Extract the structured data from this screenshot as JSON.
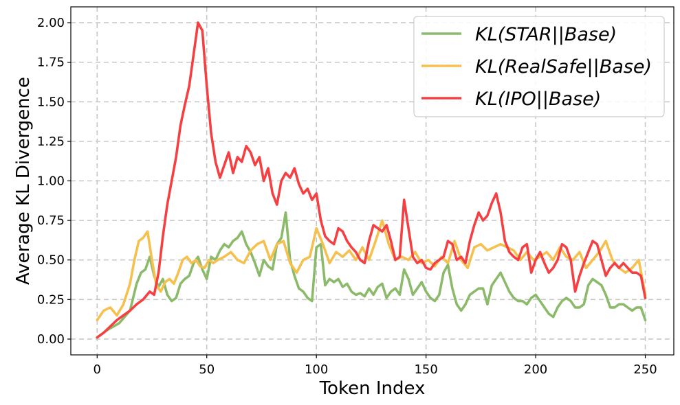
{
  "chart_data": {
    "type": "line",
    "title": "",
    "xlabel": "Token Index",
    "ylabel": "Average KL Divergence",
    "xlim": [
      -12,
      263
    ],
    "ylim": [
      -0.1,
      2.1
    ],
    "xticks": [
      0,
      50,
      100,
      150,
      200,
      250
    ],
    "xtick_labels": [
      "0",
      "50",
      "100",
      "150",
      "200",
      "250"
    ],
    "yticks": [
      0,
      0.25,
      0.5,
      0.75,
      1.0,
      1.25,
      1.5,
      1.75,
      2.0
    ],
    "ytick_labels": [
      "0.00",
      "0.25",
      "0.50",
      "0.75",
      "1.00",
      "1.25",
      "1.50",
      "1.75",
      "2.00"
    ],
    "grid": true,
    "legend_position": "top-right",
    "series": [
      {
        "name": "KL(STAR||Base)",
        "color": "#8bba6a",
        "x": [
          0,
          5,
          10,
          15,
          18,
          20,
          22,
          24,
          26,
          28,
          30,
          32,
          34,
          36,
          38,
          40,
          42,
          44,
          46,
          48,
          50,
          52,
          54,
          56,
          58,
          60,
          62,
          64,
          66,
          68,
          70,
          72,
          74,
          76,
          78,
          80,
          82,
          84,
          86,
          88,
          90,
          92,
          94,
          96,
          98,
          100,
          102,
          104,
          106,
          108,
          110,
          112,
          114,
          116,
          118,
          120,
          122,
          124,
          126,
          128,
          130,
          132,
          134,
          136,
          138,
          140,
          142,
          144,
          146,
          148,
          150,
          152,
          154,
          156,
          158,
          160,
          162,
          164,
          166,
          168,
          170,
          172,
          174,
          176,
          178,
          180,
          182,
          184,
          186,
          188,
          190,
          192,
          194,
          196,
          198,
          200,
          202,
          204,
          206,
          208,
          210,
          212,
          214,
          216,
          218,
          220,
          222,
          224,
          226,
          228,
          230,
          232,
          234,
          236,
          238,
          240,
          242,
          244,
          246,
          248,
          250
        ],
        "values": [
          0.01,
          0.06,
          0.1,
          0.18,
          0.35,
          0.42,
          0.44,
          0.52,
          0.4,
          0.33,
          0.38,
          0.28,
          0.24,
          0.26,
          0.35,
          0.38,
          0.4,
          0.48,
          0.52,
          0.44,
          0.38,
          0.52,
          0.5,
          0.56,
          0.6,
          0.58,
          0.62,
          0.64,
          0.68,
          0.6,
          0.55,
          0.48,
          0.4,
          0.5,
          0.46,
          0.44,
          0.6,
          0.64,
          0.8,
          0.5,
          0.4,
          0.32,
          0.3,
          0.26,
          0.24,
          0.58,
          0.6,
          0.34,
          0.38,
          0.36,
          0.38,
          0.33,
          0.35,
          0.3,
          0.28,
          0.29,
          0.27,
          0.32,
          0.28,
          0.33,
          0.35,
          0.26,
          0.3,
          0.32,
          0.28,
          0.44,
          0.38,
          0.28,
          0.32,
          0.36,
          0.3,
          0.26,
          0.24,
          0.28,
          0.42,
          0.47,
          0.32,
          0.22,
          0.18,
          0.22,
          0.28,
          0.3,
          0.32,
          0.32,
          0.22,
          0.34,
          0.38,
          0.42,
          0.36,
          0.3,
          0.26,
          0.24,
          0.24,
          0.22,
          0.26,
          0.28,
          0.24,
          0.2,
          0.16,
          0.14,
          0.2,
          0.24,
          0.26,
          0.24,
          0.2,
          0.2,
          0.22,
          0.34,
          0.38,
          0.36,
          0.34,
          0.28,
          0.2,
          0.2,
          0.22,
          0.22,
          0.2,
          0.18,
          0.2,
          0.2,
          0.12
        ]
      },
      {
        "name": "KL(RealSafe||Base)",
        "color": "#f5c04e",
        "x": [
          0,
          3,
          6,
          9,
          12,
          15,
          17,
          19,
          21,
          23,
          25,
          27,
          29,
          31,
          33,
          35,
          37,
          39,
          41,
          43,
          45,
          47,
          49,
          51,
          53,
          55,
          58,
          61,
          64,
          67,
          70,
          73,
          76,
          79,
          82,
          85,
          88,
          91,
          94,
          97,
          100,
          103,
          106,
          109,
          112,
          115,
          118,
          121,
          124,
          127,
          130,
          133,
          136,
          139,
          142,
          145,
          148,
          151,
          154,
          157,
          160,
          163,
          166,
          169,
          172,
          175,
          178,
          181,
          184,
          187,
          190,
          193,
          196,
          199,
          202,
          205,
          208,
          211,
          214,
          217,
          220,
          223,
          226,
          229,
          232,
          235,
          238,
          241,
          244,
          247,
          250
        ],
        "values": [
          0.12,
          0.18,
          0.2,
          0.15,
          0.22,
          0.35,
          0.5,
          0.62,
          0.64,
          0.68,
          0.5,
          0.34,
          0.3,
          0.36,
          0.38,
          0.35,
          0.42,
          0.5,
          0.52,
          0.48,
          0.5,
          0.46,
          0.45,
          0.5,
          0.48,
          0.5,
          0.52,
          0.55,
          0.5,
          0.48,
          0.56,
          0.6,
          0.62,
          0.5,
          0.6,
          0.62,
          0.48,
          0.42,
          0.5,
          0.52,
          0.7,
          0.6,
          0.48,
          0.55,
          0.52,
          0.56,
          0.5,
          0.58,
          0.5,
          0.62,
          0.75,
          0.6,
          0.5,
          0.52,
          0.5,
          0.55,
          0.48,
          0.5,
          0.46,
          0.52,
          0.48,
          0.62,
          0.5,
          0.45,
          0.58,
          0.6,
          0.56,
          0.58,
          0.6,
          0.58,
          0.56,
          0.5,
          0.55,
          0.5,
          0.52,
          0.55,
          0.5,
          0.58,
          0.52,
          0.5,
          0.55,
          0.45,
          0.5,
          0.55,
          0.62,
          0.5,
          0.45,
          0.42,
          0.45,
          0.5,
          0.28
        ]
      },
      {
        "name": "KL(IPO||Base)",
        "color": "#f54043",
        "x": [
          0,
          3,
          6,
          9,
          12,
          15,
          18,
          21,
          24,
          26,
          28,
          30,
          32,
          34,
          36,
          38,
          40,
          42,
          44,
          46,
          48,
          50,
          52,
          54,
          56,
          58,
          60,
          62,
          64,
          66,
          68,
          70,
          72,
          74,
          76,
          78,
          80,
          82,
          84,
          86,
          88,
          90,
          92,
          94,
          96,
          98,
          100,
          102,
          104,
          106,
          108,
          110,
          112,
          114,
          116,
          118,
          120,
          122,
          124,
          126,
          128,
          130,
          132,
          134,
          136,
          138,
          140,
          142,
          144,
          146,
          148,
          150,
          152,
          154,
          156,
          158,
          160,
          162,
          164,
          166,
          168,
          170,
          172,
          174,
          176,
          178,
          180,
          182,
          184,
          186,
          188,
          190,
          192,
          194,
          196,
          198,
          200,
          202,
          204,
          206,
          208,
          210,
          212,
          214,
          216,
          218,
          220,
          222,
          224,
          226,
          228,
          230,
          232,
          234,
          236,
          238,
          240,
          242,
          244,
          246,
          248,
          250
        ],
        "values": [
          0.01,
          0.04,
          0.08,
          0.12,
          0.15,
          0.18,
          0.22,
          0.25,
          0.3,
          0.28,
          0.42,
          0.65,
          0.85,
          1.0,
          1.15,
          1.35,
          1.48,
          1.6,
          1.8,
          2.0,
          1.95,
          1.6,
          1.3,
          1.12,
          1.02,
          1.1,
          1.18,
          1.05,
          1.15,
          1.12,
          1.22,
          1.18,
          1.1,
          1.15,
          1.0,
          1.08,
          0.92,
          0.85,
          1.0,
          1.05,
          1.02,
          1.08,
          0.98,
          0.92,
          0.95,
          0.88,
          0.92,
          0.75,
          0.65,
          0.62,
          0.6,
          0.7,
          0.68,
          0.62,
          0.58,
          0.55,
          0.5,
          0.48,
          0.62,
          0.72,
          0.7,
          0.68,
          0.72,
          0.62,
          0.5,
          0.52,
          0.88,
          0.7,
          0.52,
          0.48,
          0.5,
          0.45,
          0.44,
          0.48,
          0.5,
          0.52,
          0.62,
          0.6,
          0.5,
          0.52,
          0.48,
          0.62,
          0.72,
          0.8,
          0.75,
          0.78,
          0.86,
          0.92,
          0.8,
          0.62,
          0.55,
          0.52,
          0.5,
          0.58,
          0.6,
          0.42,
          0.5,
          0.55,
          0.48,
          0.42,
          0.45,
          0.5,
          0.6,
          0.58,
          0.5,
          0.3,
          0.4,
          0.48,
          0.55,
          0.62,
          0.6,
          0.5,
          0.4,
          0.45,
          0.48,
          0.45,
          0.48,
          0.45,
          0.42,
          0.42,
          0.4,
          0.26
        ]
      }
    ]
  }
}
